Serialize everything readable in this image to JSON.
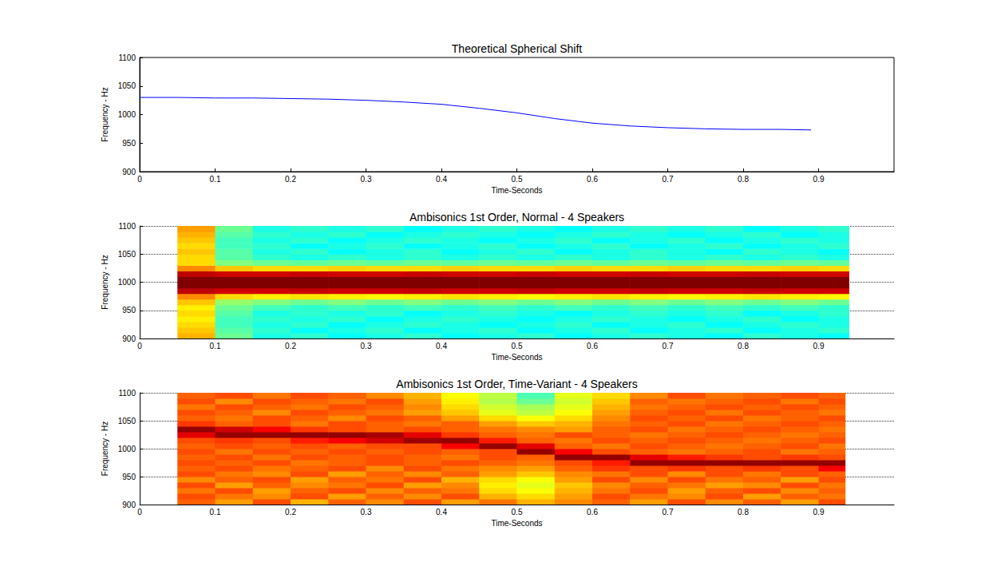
{
  "chart_data": [
    {
      "type": "line",
      "title": "Theoretical Spherical Shift",
      "xlabel": "Time-Seconds",
      "ylabel": "Frequency - Hz",
      "x": [
        0,
        0.05,
        0.1,
        0.15,
        0.2,
        0.25,
        0.3,
        0.35,
        0.4,
        0.45,
        0.5,
        0.55,
        0.6,
        0.65,
        0.7,
        0.75,
        0.8,
        0.85,
        0.89
      ],
      "values": [
        1030,
        1030,
        1029,
        1029,
        1028,
        1027,
        1025,
        1022,
        1018,
        1011,
        1003,
        993,
        985,
        980,
        977,
        975,
        974,
        974,
        973
      ],
      "color": "#0000ff",
      "xlim": [
        0,
        1
      ],
      "xticks": [
        0,
        0.1,
        0.2,
        0.3,
        0.4,
        0.5,
        0.6,
        0.7,
        0.8,
        0.9
      ],
      "ylim": [
        900,
        1100
      ],
      "yticks": [
        900,
        950,
        1000,
        1050,
        1100
      ],
      "grid": false
    },
    {
      "type": "heatmap",
      "title": "Ambisonics 1st Order, Normal - 4 Speakers",
      "xlabel": "Time-Seconds",
      "ylabel": "Frequency - Hz",
      "time_edges": [
        0.05,
        0.1,
        0.15,
        0.2,
        0.25,
        0.3,
        0.35,
        0.4,
        0.45,
        0.5,
        0.55,
        0.6,
        0.65,
        0.7,
        0.75,
        0.8,
        0.85,
        0.9,
        0.94
      ],
      "frequency_edges": [
        900,
        910,
        920,
        930,
        940,
        950,
        960,
        970,
        980,
        990,
        1000,
        1010,
        1020,
        1030,
        1040,
        1050,
        1060,
        1070,
        1080,
        1090,
        1100
      ],
      "cells": [
        [
          70,
          48,
          40,
          42,
          38,
          40,
          42,
          38,
          40,
          42,
          38,
          40,
          42,
          40,
          38,
          42,
          40,
          38
        ],
        [
          68,
          46,
          42,
          38,
          40,
          42,
          38,
          40,
          42,
          38,
          40,
          42,
          38,
          40,
          42,
          38,
          40,
          42
        ],
        [
          66,
          44,
          40,
          42,
          38,
          40,
          42,
          40,
          38,
          40,
          42,
          38,
          40,
          42,
          38,
          40,
          42,
          40
        ],
        [
          64,
          44,
          42,
          40,
          42,
          38,
          40,
          42,
          40,
          38,
          40,
          42,
          40,
          38,
          40,
          42,
          38,
          40
        ],
        [
          66,
          46,
          40,
          42,
          40,
          42,
          38,
          40,
          42,
          40,
          38,
          40,
          42,
          40,
          42,
          38,
          40,
          42
        ],
        [
          64,
          48,
          44,
          42,
          44,
          42,
          44,
          42,
          44,
          42,
          44,
          42,
          44,
          42,
          44,
          42,
          44,
          42
        ],
        [
          68,
          52,
          50,
          48,
          50,
          48,
          50,
          48,
          50,
          48,
          50,
          48,
          50,
          48,
          50,
          48,
          50,
          48
        ],
        [
          74,
          66,
          64,
          65,
          64,
          63,
          64,
          65,
          64,
          63,
          64,
          65,
          64,
          63,
          64,
          65,
          64,
          63
        ],
        [
          94,
          92,
          92,
          93,
          92,
          92,
          93,
          92,
          92,
          93,
          92,
          92,
          93,
          92,
          92,
          93,
          92,
          92
        ],
        [
          100,
          100,
          100,
          100,
          100,
          100,
          100,
          100,
          100,
          100,
          100,
          100,
          100,
          100,
          100,
          100,
          100,
          100
        ],
        [
          100,
          100,
          100,
          100,
          100,
          100,
          100,
          100,
          100,
          100,
          100,
          100,
          100,
          100,
          100,
          100,
          100,
          100
        ],
        [
          94,
          92,
          92,
          93,
          92,
          92,
          93,
          92,
          92,
          93,
          92,
          92,
          93,
          92,
          92,
          93,
          92,
          92
        ],
        [
          74,
          68,
          66,
          66,
          67,
          66,
          66,
          67,
          66,
          66,
          67,
          66,
          66,
          67,
          66,
          66,
          67,
          66
        ],
        [
          66,
          50,
          48,
          47,
          48,
          47,
          48,
          47,
          48,
          47,
          48,
          47,
          48,
          47,
          48,
          47,
          48,
          47
        ],
        [
          66,
          46,
          42,
          40,
          42,
          40,
          42,
          40,
          42,
          40,
          42,
          40,
          42,
          40,
          42,
          40,
          42,
          40
        ],
        [
          68,
          46,
          40,
          42,
          38,
          40,
          42,
          38,
          40,
          42,
          38,
          40,
          42,
          40,
          38,
          42,
          40,
          38
        ],
        [
          66,
          44,
          42,
          38,
          40,
          42,
          38,
          40,
          42,
          38,
          40,
          42,
          38,
          40,
          42,
          38,
          40,
          42
        ],
        [
          68,
          44,
          40,
          42,
          38,
          40,
          42,
          40,
          38,
          40,
          42,
          38,
          40,
          42,
          38,
          40,
          42,
          40
        ],
        [
          70,
          46,
          42,
          40,
          42,
          38,
          40,
          42,
          40,
          38,
          40,
          42,
          40,
          38,
          40,
          42,
          38,
          40
        ],
        [
          72,
          48,
          40,
          42,
          40,
          42,
          38,
          40,
          42,
          40,
          38,
          40,
          42,
          40,
          42,
          38,
          40,
          42
        ]
      ],
      "zlim": [
        0,
        100
      ],
      "xlim": [
        0,
        1
      ],
      "xticks": [
        0,
        0.1,
        0.2,
        0.3,
        0.4,
        0.5,
        0.6,
        0.7,
        0.8,
        0.9
      ],
      "ylim": [
        900,
        1100
      ],
      "yticks": [
        900,
        950,
        1000,
        1050,
        1100
      ],
      "grid": true
    },
    {
      "type": "heatmap",
      "title": "Ambisonics 1st Order, Time-Variant - 4 Speakers",
      "xlabel": "Time-Seconds",
      "ylabel": "Frequency - Hz",
      "time_edges": [
        0.05,
        0.1,
        0.15,
        0.2,
        0.25,
        0.3,
        0.35,
        0.4,
        0.45,
        0.5,
        0.55,
        0.6,
        0.65,
        0.7,
        0.75,
        0.8,
        0.85,
        0.9,
        0.935
      ],
      "frequency_edges": [
        900,
        910,
        920,
        930,
        940,
        950,
        960,
        970,
        980,
        990,
        1000,
        1010,
        1020,
        1030,
        1040,
        1050,
        1060,
        1070,
        1080,
        1090,
        1100
      ],
      "cells": [
        [
          78,
          72,
          80,
          70,
          78,
          74,
          80,
          72,
          76,
          70,
          74,
          78,
          72,
          80,
          74,
          78,
          72,
          80
        ],
        [
          80,
          76,
          74,
          80,
          72,
          78,
          74,
          80,
          70,
          66,
          72,
          80,
          76,
          74,
          80,
          72,
          78,
          76
        ],
        [
          76,
          80,
          72,
          78,
          80,
          74,
          78,
          76,
          66,
          62,
          70,
          76,
          80,
          72,
          78,
          80,
          74,
          78
        ],
        [
          80,
          72,
          78,
          74,
          76,
          80,
          72,
          74,
          64,
          60,
          68,
          74,
          78,
          76,
          72,
          74,
          80,
          76
        ],
        [
          74,
          78,
          80,
          72,
          78,
          76,
          80,
          70,
          66,
          62,
          72,
          80,
          74,
          80,
          76,
          78,
          72,
          80
        ],
        [
          80,
          76,
          74,
          80,
          72,
          78,
          74,
          78,
          72,
          68,
          74,
          76,
          80,
          74,
          80,
          76,
          80,
          78
        ],
        [
          78,
          80,
          76,
          78,
          80,
          74,
          80,
          76,
          74,
          72,
          78,
          82,
          80,
          82,
          80,
          82,
          80,
          88
        ],
        [
          80,
          78,
          80,
          76,
          78,
          80,
          78,
          80,
          78,
          76,
          80,
          85,
          98,
          98,
          98,
          98,
          98,
          98
        ],
        [
          78,
          80,
          76,
          80,
          78,
          80,
          78,
          76,
          80,
          78,
          98,
          98,
          90,
          85,
          82,
          80,
          82,
          80
        ],
        [
          80,
          76,
          80,
          78,
          80,
          78,
          80,
          78,
          80,
          98,
          88,
          80,
          78,
          76,
          78,
          80,
          76,
          78
        ],
        [
          78,
          80,
          78,
          80,
          78,
          80,
          80,
          88,
          98,
          90,
          78,
          76,
          80,
          78,
          76,
          78,
          80,
          76
        ],
        [
          80,
          82,
          80,
          85,
          88,
          92,
          97,
          98,
          85,
          78,
          76,
          80,
          78,
          80,
          78,
          76,
          78,
          80
        ],
        [
          90,
          98,
          98,
          98,
          98,
          96,
          90,
          82,
          78,
          76,
          80,
          78,
          76,
          78,
          80,
          78,
          76,
          78
        ],
        [
          98,
          92,
          88,
          82,
          80,
          78,
          80,
          78,
          76,
          74,
          72,
          78,
          80,
          76,
          78,
          80,
          78,
          76
        ],
        [
          82,
          78,
          80,
          76,
          80,
          78,
          76,
          78,
          72,
          68,
          70,
          76,
          78,
          80,
          76,
          78,
          80,
          78
        ],
        [
          78,
          76,
          80,
          78,
          74,
          80,
          78,
          72,
          66,
          62,
          66,
          74,
          80,
          78,
          80,
          76,
          78,
          80
        ],
        [
          80,
          78,
          74,
          80,
          78,
          76,
          72,
          68,
          60,
          56,
          62,
          72,
          78,
          80,
          76,
          80,
          78,
          76
        ],
        [
          76,
          80,
          78,
          76,
          80,
          78,
          74,
          66,
          58,
          54,
          60,
          70,
          76,
          78,
          80,
          78,
          80,
          78
        ],
        [
          80,
          74,
          80,
          78,
          76,
          80,
          72,
          64,
          55,
          48,
          58,
          68,
          78,
          76,
          78,
          80,
          76,
          80
        ],
        [
          78,
          80,
          76,
          80,
          78,
          74,
          70,
          62,
          56,
          45,
          60,
          66,
          74,
          80,
          76,
          78,
          80,
          78
        ]
      ],
      "zlim": [
        0,
        100
      ],
      "xlim": [
        0,
        1
      ],
      "xticks": [
        0,
        0.1,
        0.2,
        0.3,
        0.4,
        0.5,
        0.6,
        0.7,
        0.8,
        0.9
      ],
      "ylim": [
        900,
        1100
      ],
      "yticks": [
        900,
        950,
        1000,
        1050,
        1100
      ],
      "grid": true
    }
  ]
}
